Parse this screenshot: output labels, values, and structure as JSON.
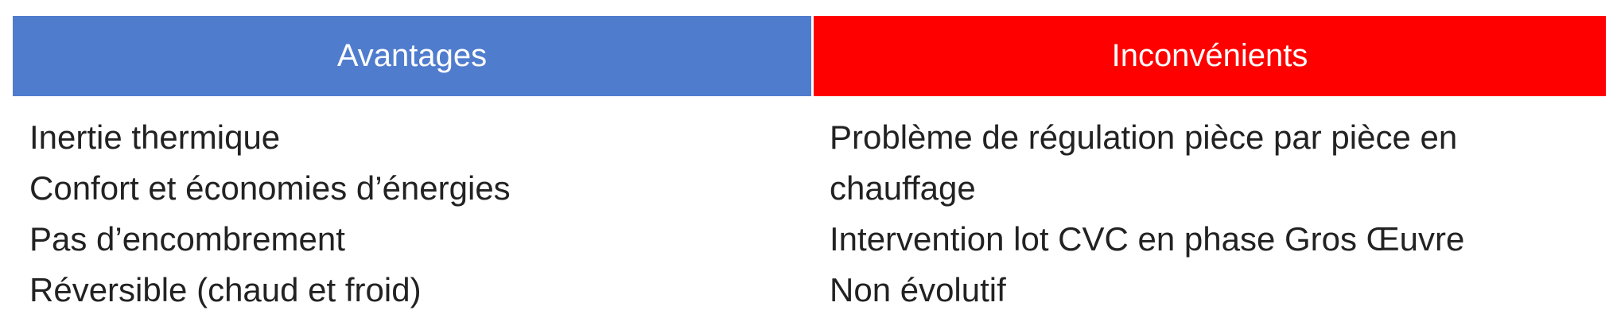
{
  "table": {
    "header_left": "Avantages",
    "header_right": "Inconvénients",
    "header_left_color": "#4f7ccd",
    "header_right_color": "#fe0000",
    "advantages": [
      "Inertie thermique",
      "Confort et économies d’énergies",
      "Pas d’encombrement",
      "Réversible (chaud et froid)"
    ],
    "disadvantages": [
      "Problème de régulation pièce par pièce en",
      "chauffage",
      "Intervention lot CVC en phase Gros Œuvre",
      "Non évolutif"
    ]
  }
}
